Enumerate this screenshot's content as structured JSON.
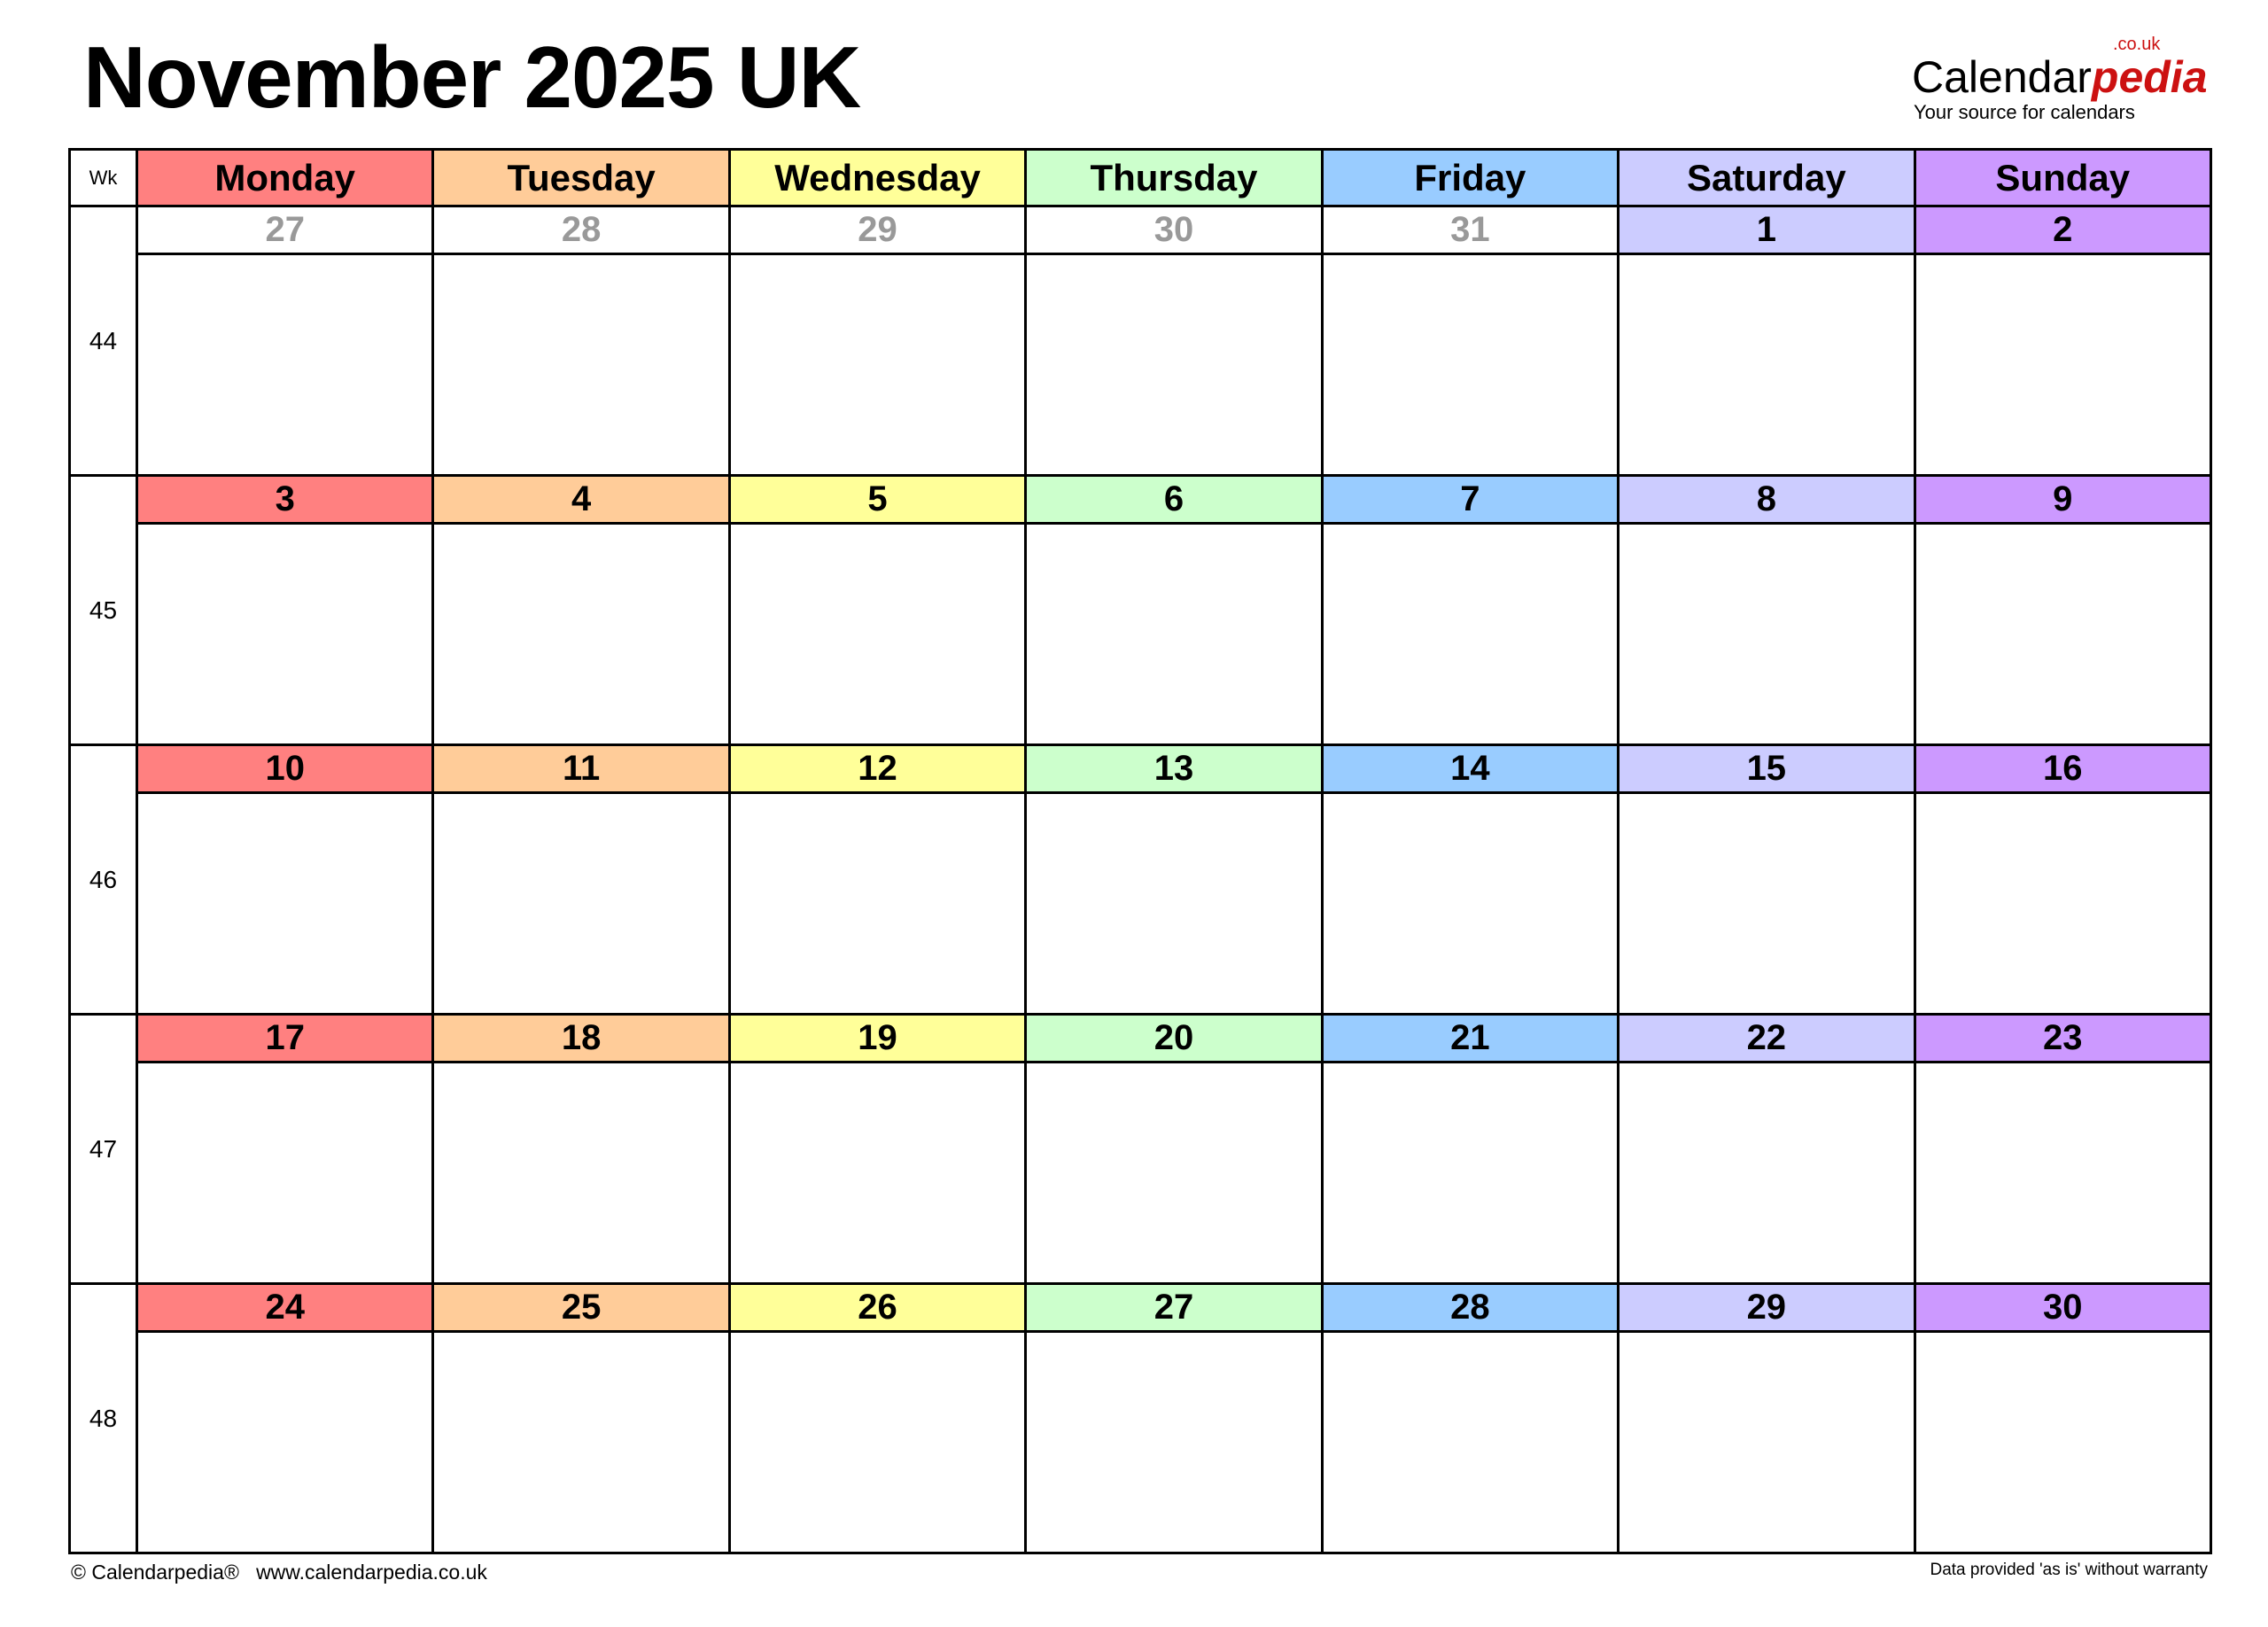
{
  "title": "November 2025 UK",
  "logo": {
    "main": "Calendar",
    "accent": "pedia",
    "suffix": ".co.uk",
    "tagline": "Your source for calendars"
  },
  "header": {
    "wk_label": "Wk",
    "days": [
      {
        "label": "Monday",
        "color": "#FF8080"
      },
      {
        "label": "Tuesday",
        "color": "#FFCC99"
      },
      {
        "label": "Wednesday",
        "color": "#FFFF99"
      },
      {
        "label": "Thursday",
        "color": "#CCFFCC"
      },
      {
        "label": "Friday",
        "color": "#99CCFF"
      },
      {
        "label": "Saturday",
        "color": "#CCCCFF"
      },
      {
        "label": "Sunday",
        "color": "#CC99FF"
      }
    ]
  },
  "weeks": [
    {
      "wk": "44",
      "days": [
        {
          "n": "27",
          "muted": true
        },
        {
          "n": "28",
          "muted": true
        },
        {
          "n": "29",
          "muted": true
        },
        {
          "n": "30",
          "muted": true
        },
        {
          "n": "31",
          "muted": true
        },
        {
          "n": "1"
        },
        {
          "n": "2"
        }
      ]
    },
    {
      "wk": "45",
      "days": [
        {
          "n": "3"
        },
        {
          "n": "4"
        },
        {
          "n": "5"
        },
        {
          "n": "6"
        },
        {
          "n": "7"
        },
        {
          "n": "8"
        },
        {
          "n": "9"
        }
      ]
    },
    {
      "wk": "46",
      "days": [
        {
          "n": "10"
        },
        {
          "n": "11"
        },
        {
          "n": "12"
        },
        {
          "n": "13"
        },
        {
          "n": "14"
        },
        {
          "n": "15"
        },
        {
          "n": "16"
        }
      ]
    },
    {
      "wk": "47",
      "days": [
        {
          "n": "17"
        },
        {
          "n": "18"
        },
        {
          "n": "19"
        },
        {
          "n": "20"
        },
        {
          "n": "21"
        },
        {
          "n": "22"
        },
        {
          "n": "23"
        }
      ]
    },
    {
      "wk": "48",
      "days": [
        {
          "n": "24"
        },
        {
          "n": "25"
        },
        {
          "n": "26"
        },
        {
          "n": "27"
        },
        {
          "n": "28"
        },
        {
          "n": "29"
        },
        {
          "n": "30"
        }
      ]
    }
  ],
  "footer": {
    "left": "© Calendarpedia®   www.calendarpedia.co.uk",
    "right": "Data provided 'as is' without warranty"
  }
}
